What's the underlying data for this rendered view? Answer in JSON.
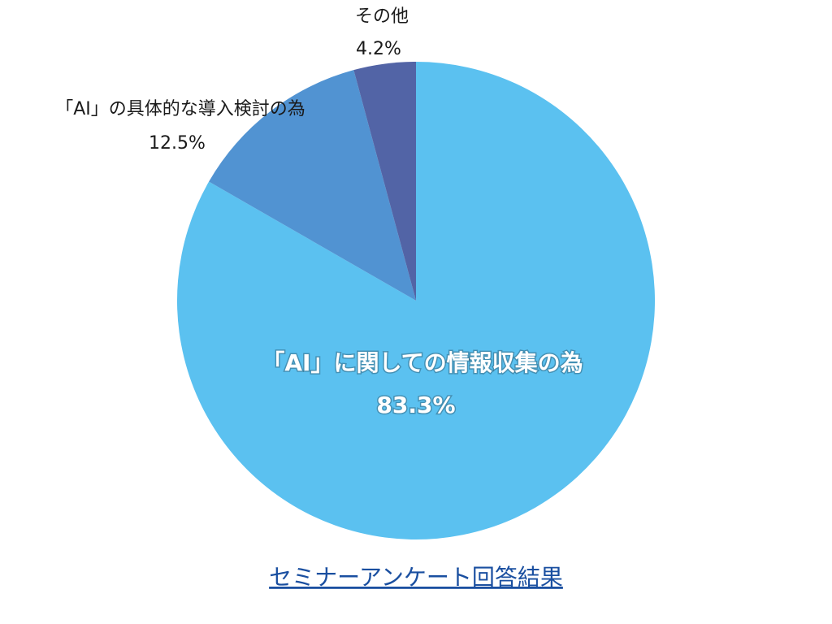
{
  "chart_data": {
    "type": "pie",
    "title": "セミナーアンケート回答結果",
    "categories": [
      "「AI」に関しての情報収集の為",
      "「AI」の具体的な導入検討の為",
      "その他"
    ],
    "values": [
      83.3,
      12.5,
      4.2
    ],
    "value_labels": [
      "83.3%",
      "12.5%",
      "4.2%"
    ],
    "colors": [
      "#5bc1f0",
      "#5193d2",
      "#5264a6"
    ]
  }
}
